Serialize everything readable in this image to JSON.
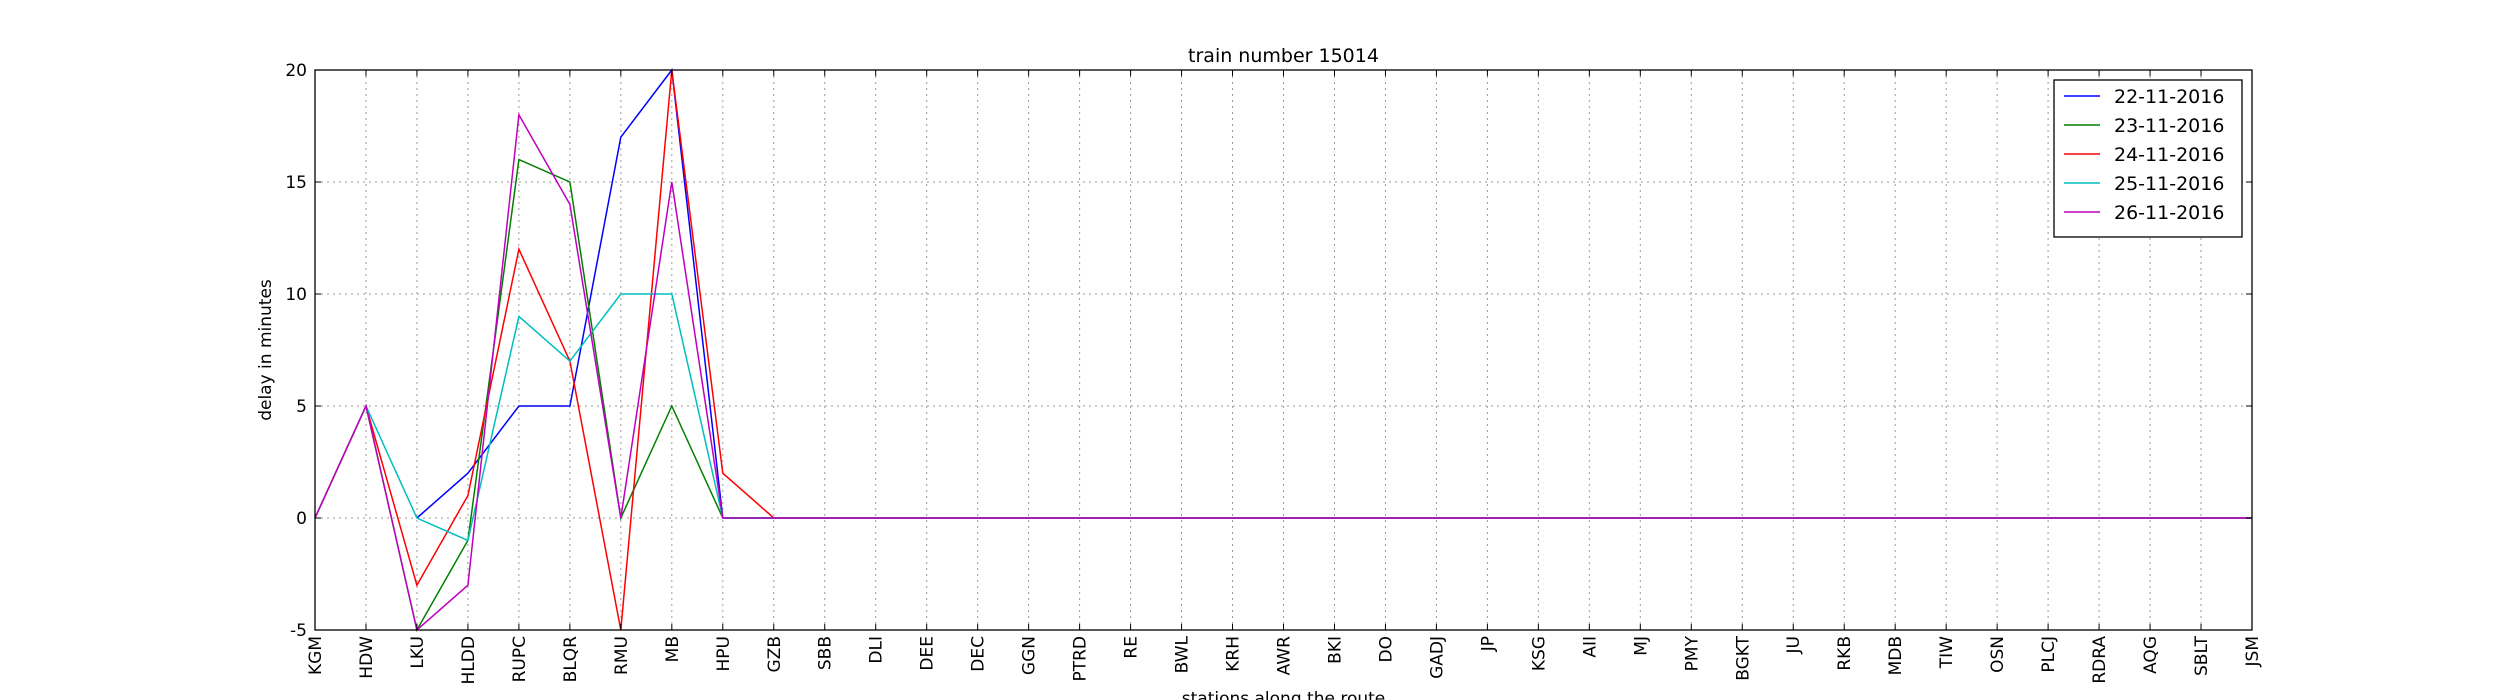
{
  "chart_data": {
    "type": "line",
    "title": "train number 15014",
    "xlabel": "stations along the route",
    "ylabel": "delay in minutes",
    "categories": [
      "KGM",
      "HDW",
      "LKU",
      "HLDD",
      "RUPC",
      "BLQR",
      "RMU",
      "MB",
      "HPU",
      "GZB",
      "SBB",
      "DLI",
      "DEE",
      "DEC",
      "GGN",
      "PTRD",
      "RE",
      "BWL",
      "KRH",
      "AWR",
      "BKI",
      "DO",
      "GADJ",
      "JP",
      "KSG",
      "AII",
      "MJ",
      "PMY",
      "BGKT",
      "JU",
      "RKB",
      "MDB",
      "TIW",
      "OSN",
      "PLCJ",
      "RDRA",
      "AQG",
      "SBLT",
      "JSM"
    ],
    "ylim": [
      -5,
      20
    ],
    "yticks": [
      -5,
      0,
      5,
      10,
      15,
      20
    ],
    "grid": true,
    "legend_position": "top-right",
    "series": [
      {
        "name": "22-11-2016",
        "color": "#0000ff",
        "values": [
          null,
          null,
          0,
          2,
          5,
          5,
          17,
          20,
          0,
          0,
          0,
          0,
          0,
          0,
          0,
          0,
          0,
          0,
          0,
          0,
          0,
          0,
          0,
          0,
          0,
          0,
          0,
          0,
          0,
          0,
          0,
          0,
          0,
          0,
          0,
          0,
          0,
          0,
          0
        ]
      },
      {
        "name": "23-11-2016",
        "color": "#008000",
        "values": [
          0,
          5,
          -5,
          -1,
          16,
          15,
          0,
          5,
          0,
          0,
          0,
          0,
          0,
          0,
          0,
          0,
          0,
          0,
          0,
          0,
          0,
          0,
          0,
          0,
          0,
          0,
          0,
          0,
          0,
          0,
          0,
          0,
          0,
          0,
          0,
          0,
          0,
          0,
          0
        ]
      },
      {
        "name": "24-11-2016",
        "color": "#ff0000",
        "values": [
          0,
          5,
          -3,
          1,
          12,
          7,
          -5,
          20,
          2,
          0,
          0,
          0,
          0,
          0,
          0,
          0,
          0,
          0,
          0,
          0,
          0,
          0,
          0,
          0,
          0,
          0,
          0,
          0,
          0,
          0,
          0,
          0,
          0,
          0,
          0,
          0,
          0,
          0,
          0
        ]
      },
      {
        "name": "25-11-2016",
        "color": "#00bfbf",
        "values": [
          0,
          5,
          0,
          -1,
          9,
          7,
          10,
          10,
          0,
          0,
          0,
          0,
          0,
          0,
          0,
          0,
          0,
          0,
          0,
          0,
          0,
          0,
          0,
          0,
          0,
          0,
          0,
          0,
          0,
          0,
          0,
          0,
          0,
          0,
          0,
          0,
          0,
          0,
          0
        ]
      },
      {
        "name": "26-11-2016",
        "color": "#bf00bf",
        "values": [
          0,
          5,
          -5,
          -3,
          18,
          14,
          0,
          15,
          0,
          0,
          0,
          0,
          0,
          0,
          0,
          0,
          0,
          0,
          0,
          0,
          0,
          0,
          0,
          0,
          0,
          0,
          0,
          0,
          0,
          0,
          0,
          0,
          0,
          0,
          0,
          0,
          0,
          0,
          0
        ]
      }
    ]
  }
}
